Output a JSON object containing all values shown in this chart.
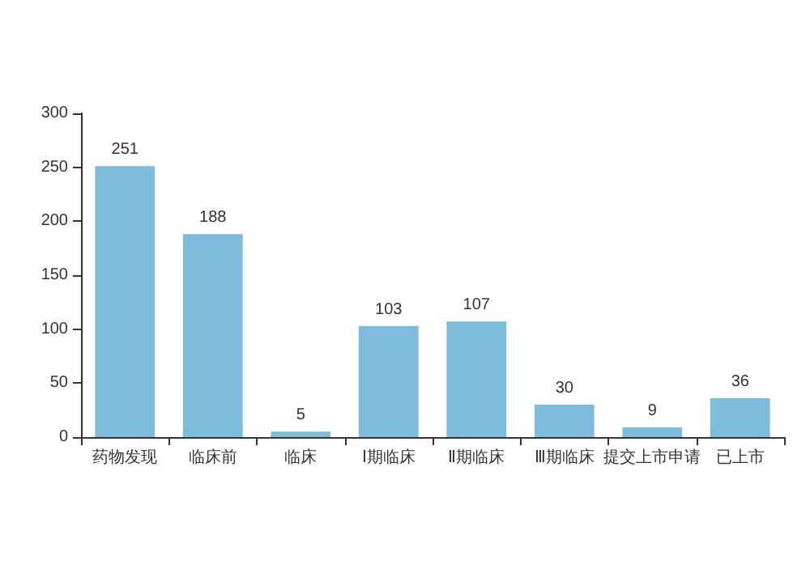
{
  "chart_data": {
    "type": "bar",
    "categories": [
      "药物发现",
      "临床前",
      "临床",
      "Ⅰ期临床",
      "Ⅱ期临床",
      "Ⅲ期临床",
      "提交上市申请",
      "已上市"
    ],
    "values": [
      251,
      188,
      5,
      103,
      107,
      30,
      9,
      36
    ],
    "color": "#7dbcdb",
    "ylim": [
      0,
      300
    ],
    "yticks": [
      0,
      50,
      100,
      150,
      200,
      250,
      300
    ],
    "data_labels": true,
    "grid": false
  }
}
